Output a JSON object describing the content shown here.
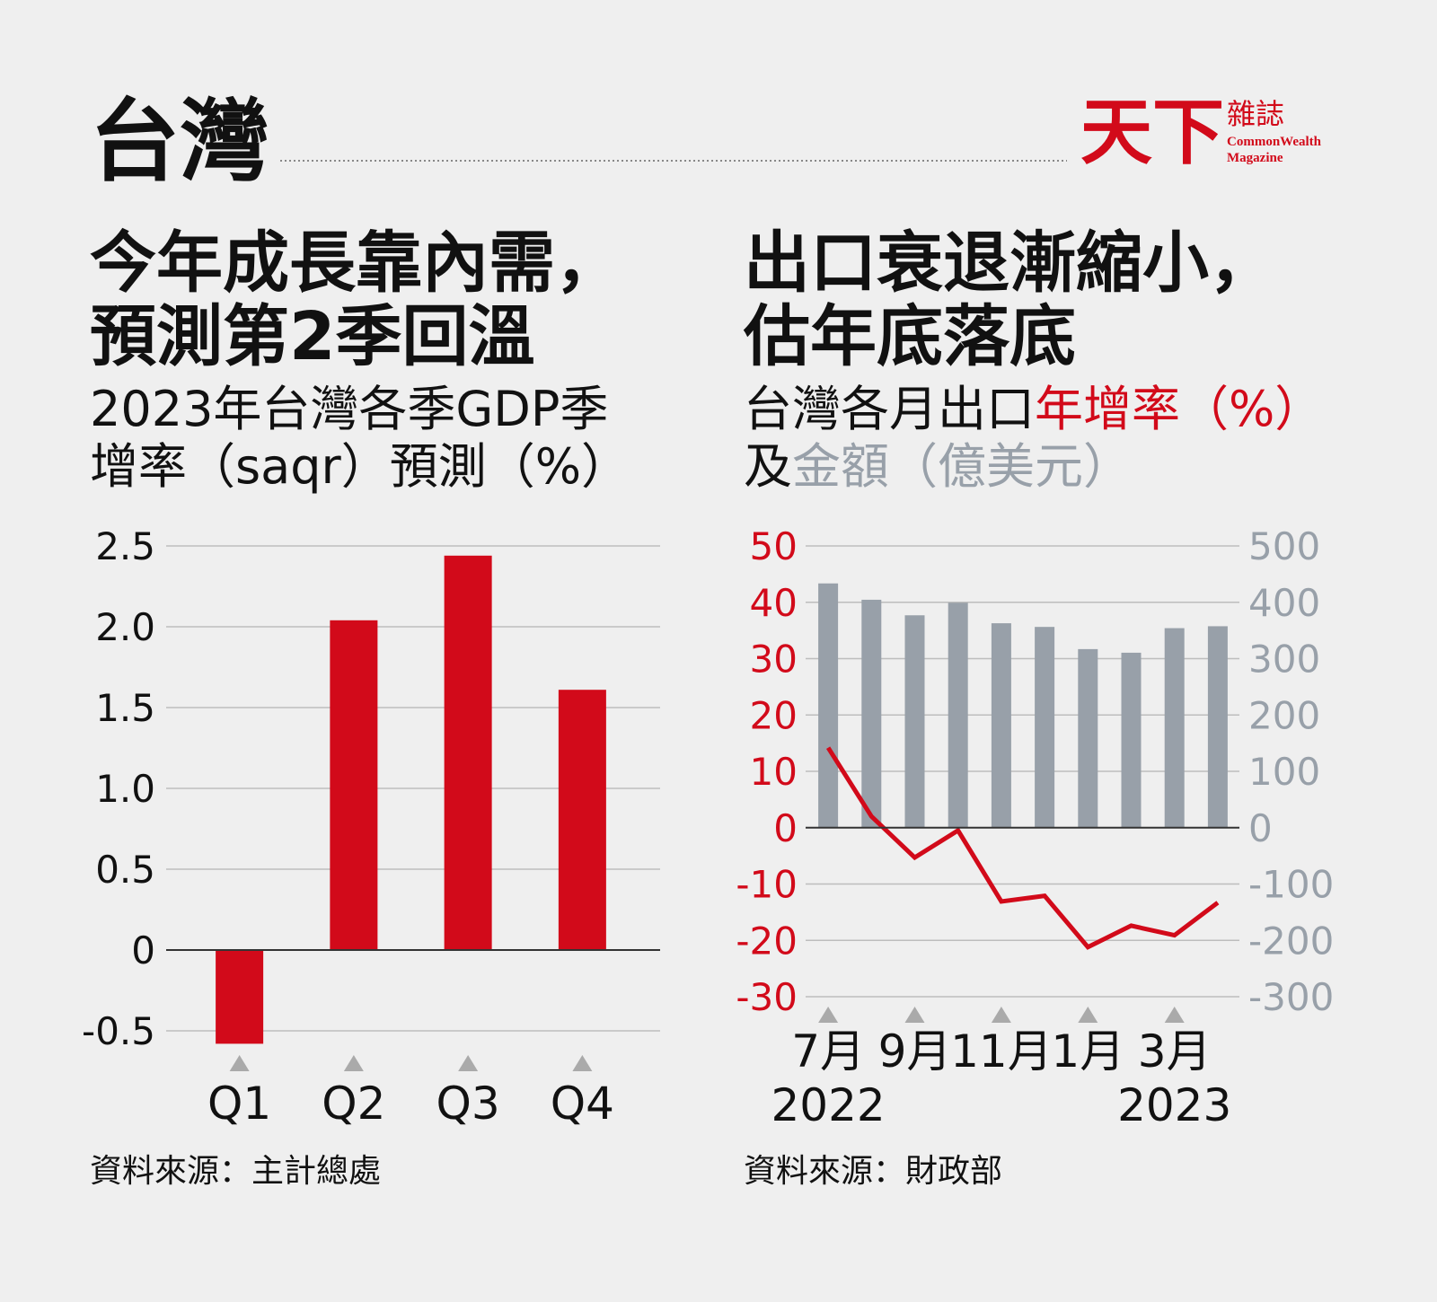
{
  "header": {
    "title": "台灣",
    "logo": {
      "main": "天下",
      "side": "雜誌",
      "english": [
        "CommonWealth",
        "Magazine"
      ]
    }
  },
  "chart_data": [
    {
      "type": "bar",
      "title": [
        "今年成長靠內需，",
        "預測第2季回溫"
      ],
      "subtitle": [
        [
          {
            "text": "2023年台灣各季GDP季"
          }
        ],
        [
          {
            "text": "增率（saqr）預測（%）"
          }
        ]
      ],
      "categories": [
        "Q1",
        "Q2",
        "Q3",
        "Q4"
      ],
      "values": [
        -0.58,
        2.04,
        2.44,
        1.61
      ],
      "color": "#d20a1a",
      "ylim": [
        -0.6,
        2.5
      ],
      "yticks": [
        -0.5,
        0,
        0.5,
        {
          "value": 1,
          "label": "1.0"
        },
        1.5,
        {
          "value": 2,
          "label": "2.0"
        },
        2.5
      ],
      "grid": true,
      "source": "資料來源：主計總處"
    },
    {
      "type": "bar-line",
      "title": [
        "出口衰退漸縮小，",
        "估年底落底"
      ],
      "subtitle": [
        [
          {
            "text": "台灣各月出口"
          },
          {
            "text": "年增率（%）",
            "color": "#d20a1a"
          }
        ],
        [
          {
            "text": "及"
          },
          {
            "text": "金額（億美元）",
            "color": "#98a0a9"
          }
        ]
      ],
      "categories": [
        "7月",
        null,
        "9月",
        null,
        "11月",
        null,
        "1月",
        null,
        "3月",
        null
      ],
      "years": [
        "2022",
        null,
        null,
        null,
        null,
        null,
        null,
        null,
        "2023",
        null
      ],
      "series": [
        {
          "type": "bar",
          "axis": "y2",
          "color": "#98a0a9",
          "values": [
            433.5,
            404.5,
            376.9,
            399.1,
            362.8,
            356.3,
            316.9,
            310.5,
            354.1,
            357.5
          ]
        },
        {
          "type": "line",
          "axis": "y",
          "color": "#d20a1a",
          "values": [
            14.2,
            2.0,
            -5.3,
            -0.5,
            -13.1,
            -12.1,
            -21.2,
            -17.4,
            -19.1,
            -13.3
          ]
        }
      ],
      "ylim": [
        -30,
        50
      ],
      "yticks": [
        -30,
        -20,
        -10,
        0,
        10,
        20,
        30,
        40,
        50
      ],
      "y2lim": [
        -300,
        500
      ],
      "y2ticks": [
        -300,
        -200,
        -100,
        0,
        100,
        200,
        300,
        400,
        500
      ],
      "ycolor": "#d20a1a",
      "y2color": "#98a0a9",
      "grid": true,
      "source": "資料來源：財政部"
    }
  ]
}
